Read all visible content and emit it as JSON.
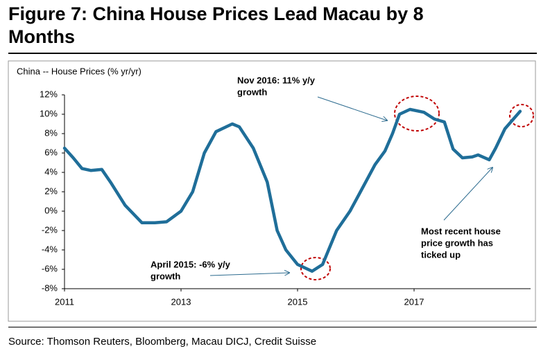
{
  "chart_data": {
    "type": "line",
    "title": "Figure 7: China House Prices Lead Macau by 8 Months",
    "y_label": "China -- House Prices (% yr/yr)",
    "source": "Source: Thomson Reuters, Bloomberg, Macau DICJ, Credit Suisse",
    "x": [
      2011.0,
      2011.15,
      2011.3,
      2011.45,
      2011.64,
      2011.8,
      2012.04,
      2012.33,
      2012.55,
      2012.75,
      2013.0,
      2013.2,
      2013.4,
      2013.6,
      2013.88,
      2014.0,
      2014.24,
      2014.48,
      2014.65,
      2014.8,
      2015.0,
      2015.25,
      2015.43,
      2015.67,
      2015.9,
      2016.08,
      2016.33,
      2016.5,
      2016.63,
      2016.75,
      2016.93,
      2017.17,
      2017.35,
      2017.52,
      2017.67,
      2017.83,
      2018.0,
      2018.1,
      2018.29,
      2018.4,
      2018.56,
      2018.82
    ],
    "values": [
      6.5,
      5.5,
      4.4,
      4.2,
      4.3,
      2.9,
      0.6,
      -1.2,
      -1.2,
      -1.1,
      0,
      2,
      6,
      8.2,
      9,
      8.7,
      6.5,
      3,
      -2,
      -4,
      -5.5,
      -6.2,
      -5.5,
      -2,
      0,
      2,
      4.8,
      6.2,
      8,
      10,
      10.5,
      10.2,
      9.5,
      9.2,
      6.4,
      5.5,
      5.6,
      5.8,
      5.3,
      6.5,
      8.5,
      10.3
    ],
    "color": "#1f6e99",
    "xlim": [
      2011,
      2019
    ],
    "xticks": [
      2011,
      2013,
      2015,
      2017
    ],
    "ylim": [
      -8,
      12
    ],
    "yticks": [
      {
        "value": -8,
        "label": "-8%"
      },
      {
        "value": -6,
        "label": "-6%"
      },
      {
        "value": -4,
        "label": "-4%"
      },
      {
        "value": -2,
        "label": "-2%"
      },
      {
        "value": 0,
        "label": "0%"
      },
      {
        "value": 2,
        "label": "2%"
      },
      {
        "value": 4,
        "label": "4%"
      },
      {
        "value": 6,
        "label": "6%"
      },
      {
        "value": 8,
        "label": "8%"
      },
      {
        "value": 10,
        "label": "10%"
      },
      {
        "value": 12,
        "label": "12%"
      }
    ],
    "grid": false,
    "annotations": [
      {
        "lines": [
          "Nov 2016: 11% y/y",
          "growth"
        ]
      },
      {
        "lines": [
          "April 2015: -6% y/y",
          "growth"
        ]
      },
      {
        "lines": [
          "Most recent house",
          "price growth has",
          "ticked up"
        ]
      }
    ]
  }
}
